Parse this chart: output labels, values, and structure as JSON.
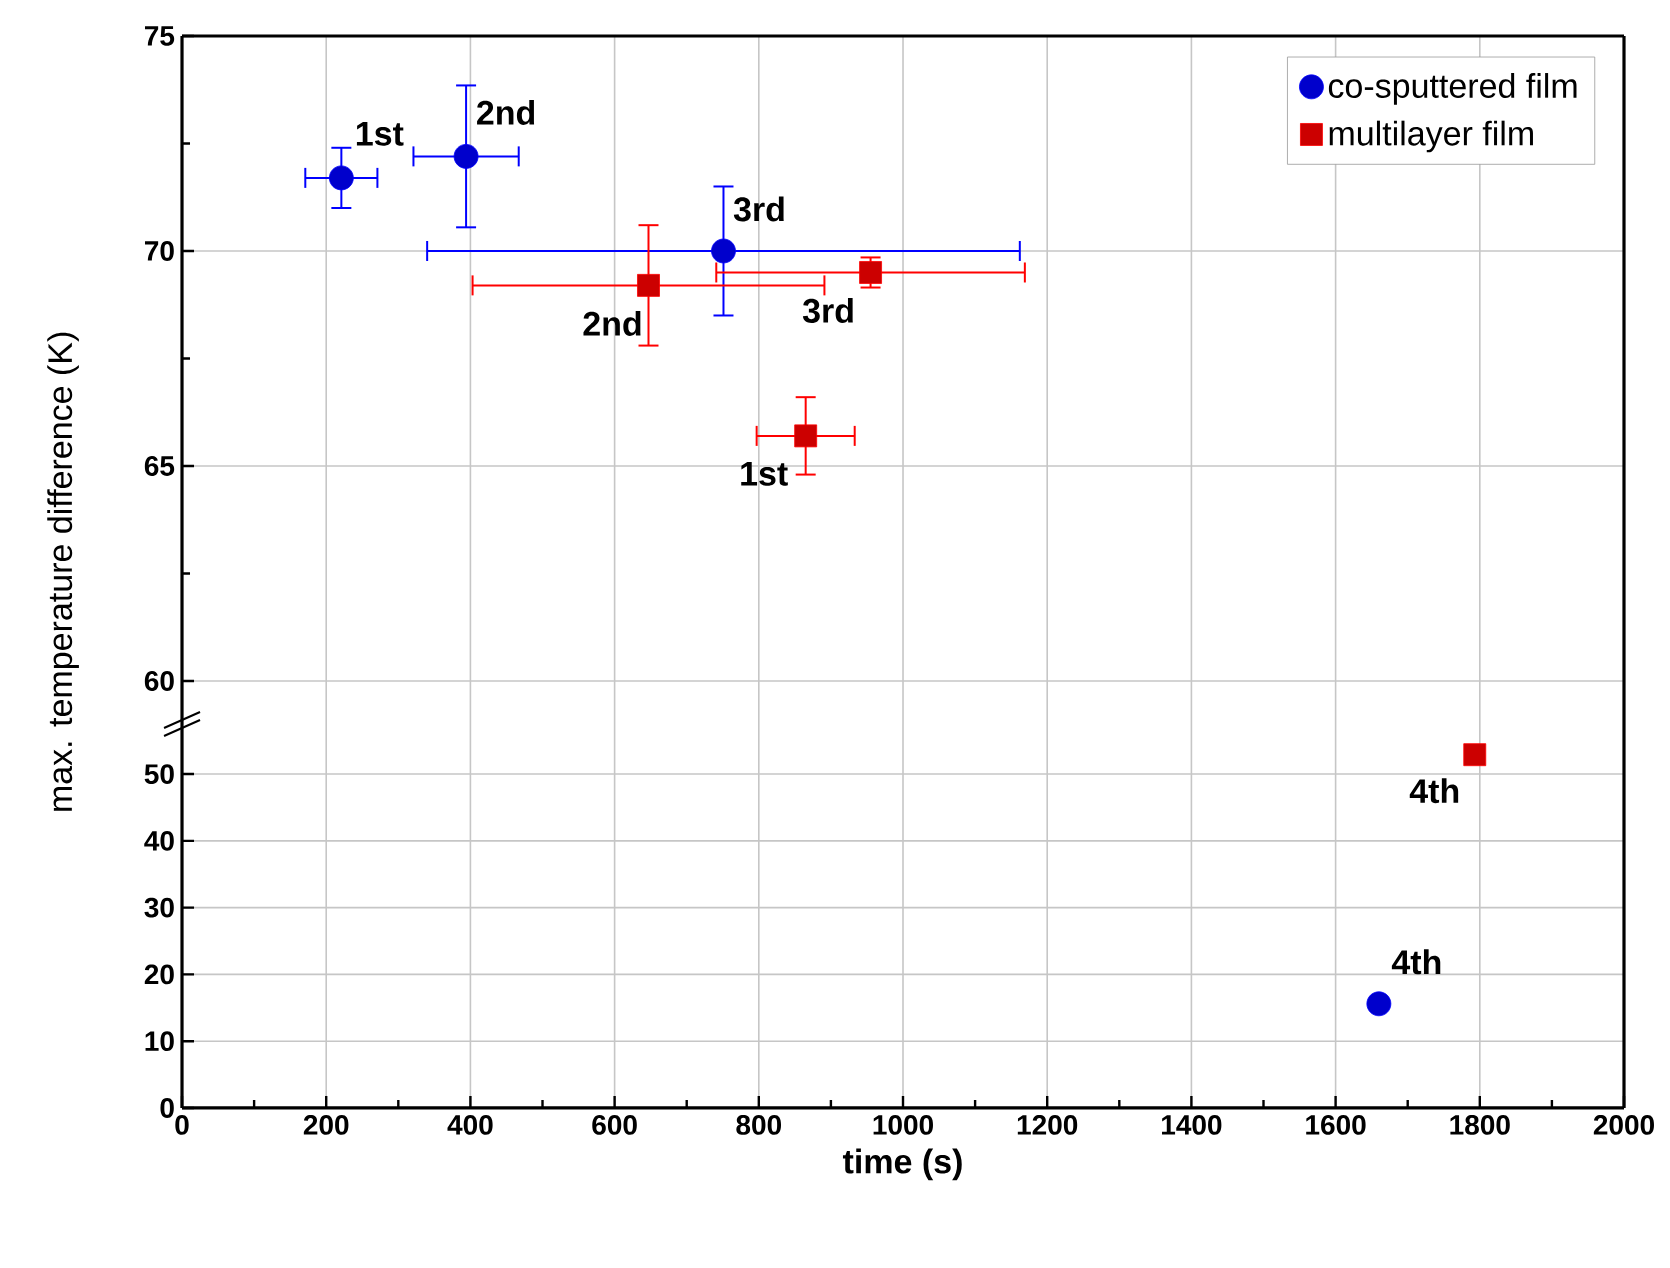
{
  "chart_data": [
    {
      "type": "scatter",
      "ylabel": "max. temperature difference (K)",
      "xlim": [
        0,
        2000
      ],
      "ylim": [
        59,
        75
      ],
      "xticks": [
        0,
        200,
        400,
        600,
        800,
        1000,
        1200,
        1400,
        1600,
        1800,
        2000
      ],
      "yticks": [
        60,
        {
          "value": 62.5,
          "label": null
        },
        65,
        {
          "value": 67.5,
          "label": null
        },
        70,
        {
          "value": 72.5,
          "label": null
        },
        75
      ],
      "tick_labels": "y",
      "grid": true,
      "legend": "top right",
      "series": [
        {
          "name": "co-sputtered film",
          "color": "#0000ff",
          "marker": "circle",
          "x": [
            221,
            394,
            751
          ],
          "values": [
            71.7,
            72.2,
            70.0
          ],
          "errors": [
            0.7,
            1.65,
            1.5
          ],
          "xerrors": [
            50,
            73,
            411
          ]
        },
        {
          "name": "multilayer film",
          "color": "#ff0000",
          "marker": "square",
          "x": [
            647,
            955,
            865
          ],
          "values": [
            69.2,
            69.5,
            65.7
          ],
          "errors": [
            1.4,
            0.35,
            0.9
          ],
          "xerrors": [
            244,
            214,
            68
          ]
        }
      ],
      "annotations": [
        {
          "text": "1st",
          "x": 221,
          "y": 71.7
        },
        {
          "text": "2nd",
          "x": 394,
          "y": 72.2
        },
        {
          "text": "3rd",
          "x": 751,
          "y": 70.0
        },
        {
          "text": "2nd",
          "x": 647,
          "y": 69.2
        },
        {
          "text": "3rd",
          "x": 955,
          "y": 69.5
        },
        {
          "text": "1st",
          "x": 865,
          "y": 65.7
        }
      ]
    },
    {
      "type": "scatter",
      "xlabel": "time (s)",
      "xlim": [
        0,
        2000
      ],
      "ylim": [
        0,
        57.5
      ],
      "xticks": [
        0,
        {
          "value": 100,
          "label": null
        },
        200,
        {
          "value": 300,
          "label": null
        },
        400,
        {
          "value": 500,
          "label": null
        },
        600,
        {
          "value": 700,
          "label": null
        },
        800,
        {
          "value": 900,
          "label": null
        },
        1000,
        {
          "value": 1100,
          "label": null
        },
        1200,
        {
          "value": 1300,
          "label": null
        },
        1400,
        {
          "value": 1500,
          "label": null
        },
        1600,
        {
          "value": 1700,
          "label": null
        },
        1800,
        {
          "value": 1900,
          "label": null
        },
        2000
      ],
      "yticks": [
        0,
        10,
        20,
        30,
        40,
        50
      ],
      "grid": true,
      "series": [
        {
          "color": "#0000ff",
          "marker": "circle",
          "x": [
            1660
          ],
          "values": [
            15.6
          ]
        },
        {
          "color": "#ff0000",
          "marker": "square",
          "x": [
            1793
          ],
          "values": [
            52.9
          ]
        }
      ],
      "annotations": [
        {
          "text": "4th",
          "x": 1793,
          "y": 52.9
        },
        {
          "text": "4th",
          "x": 1660,
          "y": 15.6
        }
      ]
    }
  ]
}
